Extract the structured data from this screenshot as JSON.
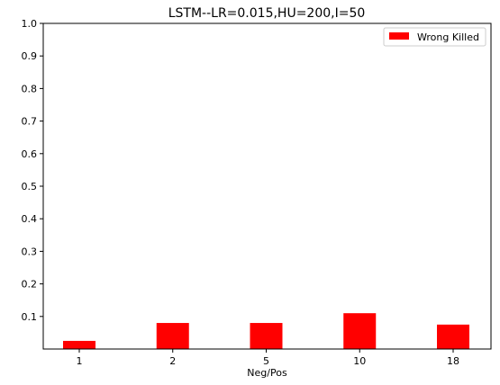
{
  "chart_data": {
    "type": "bar",
    "title": "LSTM--LR=0.015,HU=200,I=50",
    "xlabel": "Neg/Pos",
    "ylabel": "",
    "categories": [
      "1",
      "2",
      "5",
      "10",
      "18"
    ],
    "series": [
      {
        "name": "Wrong Killed",
        "color": "#ff0000",
        "values": [
          0.025,
          0.08,
          0.08,
          0.11,
          0.075
        ]
      }
    ],
    "ylim": [
      0.0,
      1.0
    ],
    "yticks": [
      "0.1",
      "0.2",
      "0.3",
      "0.4",
      "0.5",
      "0.6",
      "0.7",
      "0.8",
      "0.9",
      "1.0"
    ],
    "grid": false,
    "legend_position": "top-right"
  }
}
